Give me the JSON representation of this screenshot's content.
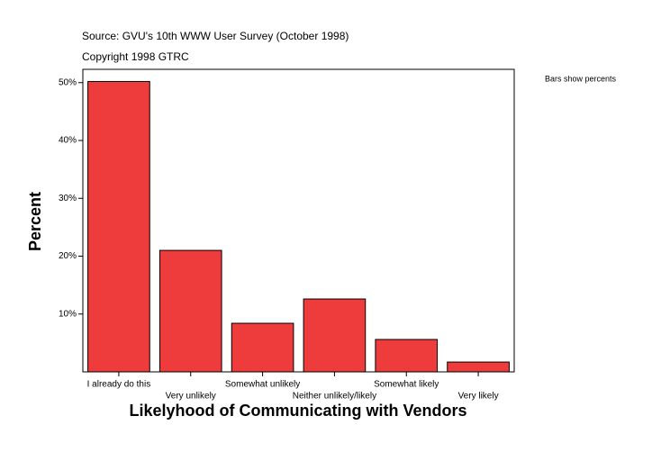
{
  "chart_data": {
    "type": "bar",
    "source": "Source: GVU's 10th WWW User Survey (October 1998)",
    "copyright": "Copyright 1998 GTRC",
    "note": "Bars show percents",
    "ylabel": "Percent",
    "xlabel": "Likelyhood of Communicating with Vendors",
    "categories": [
      "I already do this",
      "Very unlikely",
      "Somewhat unlikely",
      "Neither unlikely/likely",
      "Somewhat likely",
      "Very likely"
    ],
    "values": [
      50.2,
      21.0,
      8.4,
      12.6,
      5.6,
      1.7
    ],
    "color": "#ee3c3c",
    "ylim": [
      0,
      52.3
    ],
    "yticks": [
      {
        "value": 10,
        "label": "10%"
      },
      {
        "value": 20,
        "label": "20%"
      },
      {
        "value": 30,
        "label": "30%"
      },
      {
        "value": 40,
        "label": "40%"
      },
      {
        "value": 50,
        "label": "50%"
      }
    ]
  }
}
